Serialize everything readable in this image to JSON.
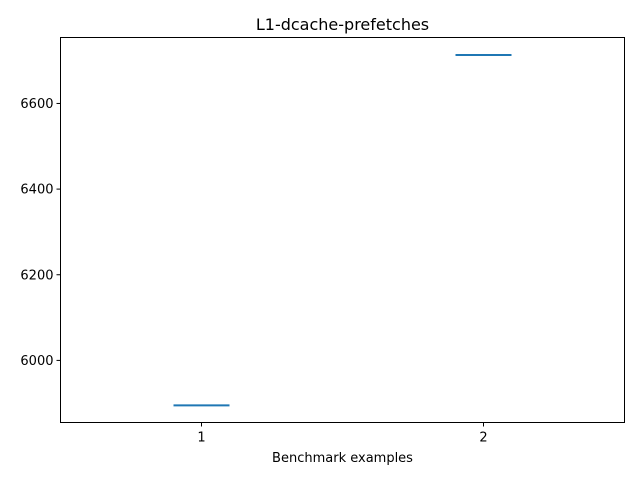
{
  "chart_data": {
    "type": "boxplot",
    "title": "L1-dcache-prefetches",
    "xlabel": "Benchmark examples",
    "ylabel": "",
    "categories": [
      "1",
      "2"
    ],
    "series": [
      {
        "name": "L1-dcache-prefetches",
        "values": [
          5895,
          6713
        ]
      }
    ],
    "ylim": [
      5855,
      6754
    ],
    "yticks": [
      6000,
      6200,
      6400,
      6600
    ],
    "ytick_labels": [
      "6000",
      "6200",
      "6400",
      "6600"
    ],
    "grid": false,
    "line_color": "#1f77b4"
  }
}
